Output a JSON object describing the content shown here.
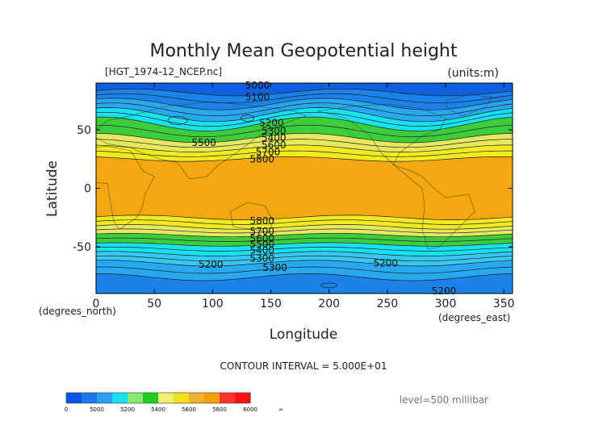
{
  "chart_data": {
    "type": "heatmap",
    "title": "Monthly Mean Geopotential height",
    "subtitle_left": "[HGT_1974-12_NCEP.nc]",
    "subtitle_right": "(units:m)",
    "xlabel": "Longitude",
    "ylabel": "Latitude",
    "x_unit_label": "(degrees_east)",
    "y_unit_label": "(degrees_north)",
    "xlim": [
      0,
      357.5
    ],
    "ylim": [
      -90,
      90
    ],
    "x_ticks": [
      0,
      50,
      100,
      150,
      200,
      250,
      300,
      350
    ],
    "y_ticks": [
      50,
      0,
      -50
    ],
    "contour_interval_text": "CONTOUR INTERVAL = 5.000E+01",
    "level_text": "level=500 millibar",
    "contour_labels": [
      {
        "text": "5000",
        "lon": 128,
        "lat": 88
      },
      {
        "text": "5100",
        "lon": 128,
        "lat": 78
      },
      {
        "text": "5200",
        "lon": 140,
        "lat": 56
      },
      {
        "text": "5300",
        "lon": 142,
        "lat": 49
      },
      {
        "text": "5400",
        "lon": 142,
        "lat": 43
      },
      {
        "text": "5500",
        "lon": 82,
        "lat": 39
      },
      {
        "text": "5600",
        "lon": 142,
        "lat": 37
      },
      {
        "text": "5700",
        "lon": 137,
        "lat": 31
      },
      {
        "text": "5800",
        "lon": 132,
        "lat": 25
      },
      {
        "text": "5800",
        "lon": 132,
        "lat": -28
      },
      {
        "text": "5700",
        "lon": 132,
        "lat": -37
      },
      {
        "text": "5600",
        "lon": 132,
        "lat": -43
      },
      {
        "text": "5500",
        "lon": 132,
        "lat": -48
      },
      {
        "text": "5400",
        "lon": 132,
        "lat": -53
      },
      {
        "text": "5300",
        "lon": 132,
        "lat": -60
      },
      {
        "text": "5200",
        "lon": 88,
        "lat": -65
      },
      {
        "text": "5300",
        "lon": 143,
        "lat": -68
      },
      {
        "text": "5200",
        "lon": 238,
        "lat": -64
      },
      {
        "text": "5200",
        "lon": 288,
        "lat": -88
      }
    ],
    "colorbar": {
      "labels": [
        "0",
        "5000",
        "5200",
        "5400",
        "5600",
        "5800",
        "6000",
        "∞"
      ],
      "colors": [
        "#0a55e8",
        "#1a78e6",
        "#2aa0f0",
        "#18e0f0",
        "#8ae870",
        "#22cc22",
        "#f0f070",
        "#f2e020",
        "#f0b030",
        "#f2a000",
        "#ff3030",
        "#ff1010"
      ]
    },
    "band_colors": {
      "b5000": "#0f60e0",
      "b5100": "#1a82ea",
      "b5200": "#28a8f0",
      "b5300": "#38c8f0",
      "b5400": "#18e2f0",
      "b5500": "#3ccc3c",
      "b5600": "#22bb22",
      "b5700": "#e8e860",
      "b5800": "#f2ea20",
      "b5850": "#f2a80e"
    }
  }
}
